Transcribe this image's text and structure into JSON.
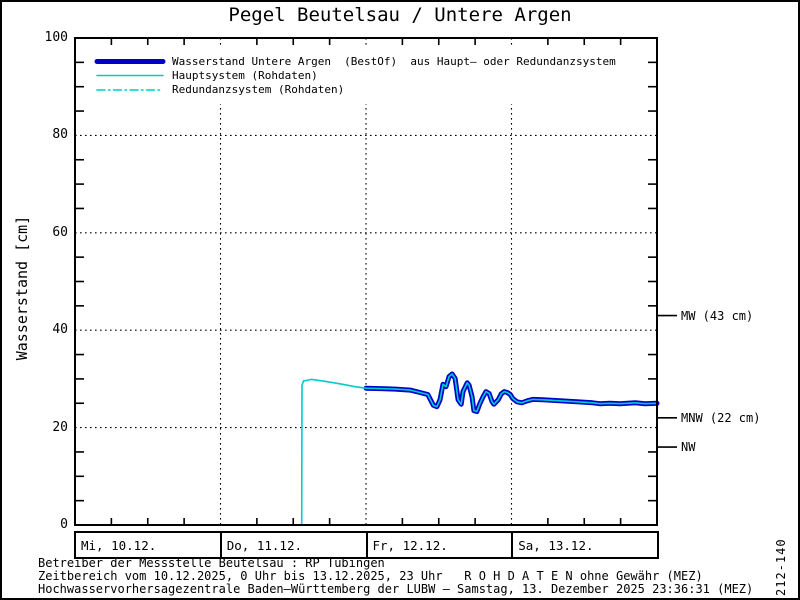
{
  "page": {
    "title": "Pegel Beutelsau / Untere Argen",
    "plot_id": "212-140",
    "footer": {
      "line1": "Betreiber der Messstelle Beutelsau : RP Tübingen",
      "line2": "Zeitbereich vom 10.12.2025, 0 Uhr bis 13.12.2025, 23 Uhr   R O H D A T E N ohne Gewähr (MEZ)",
      "line3": "Hochwasservorhersagezentrale Baden–Württemberg der LUBW – Samstag, 13. Dezember 2025 23:36:31 (MEZ)"
    }
  },
  "colors": {
    "bestof_blue": "#0000cc",
    "rohdaten_cyan": "#00cccc",
    "axis_black": "#000000",
    "background": "#ffffff"
  },
  "chart_data": {
    "type": "line",
    "title": "Pegel Beutelsau / Untere Argen",
    "ylabel": "Wasserstand [cm]",
    "ylim": [
      0,
      100
    ],
    "y_major_step": 20,
    "y_minor_step": 5,
    "y_tick_labels": [
      "0",
      "20",
      "40",
      "60",
      "80",
      "100"
    ],
    "grid": true,
    "grid_y_values": [
      20,
      40,
      60,
      80
    ],
    "x_range_hours": 96,
    "x_minor_step_hours": 6,
    "x_day_boundaries_hours": [
      24,
      48,
      72
    ],
    "day_labels": [
      "Mi, 10.12.",
      "Do, 11.12.",
      "Fr, 12.12.",
      "Sa, 13.12."
    ],
    "legend_position": "top-left",
    "right_markers": [
      {
        "label": "MW (43 cm)",
        "value": 43
      },
      {
        "label": "MNW (22 cm)",
        "value": 22
      },
      {
        "label": "NW",
        "value": 16
      }
    ],
    "series": [
      {
        "name": "Wasserstand Untere Argen  (BestOf)  aus Haupt– oder Redundanzsystem",
        "color": "#0000cc",
        "width": 5,
        "style": "solid",
        "points": [
          [
            48.0,
            28.1
          ],
          [
            50.3,
            28.0
          ],
          [
            52.8,
            27.9
          ],
          [
            55.3,
            27.7
          ],
          [
            56.9,
            27.2
          ],
          [
            58.2,
            26.8
          ],
          [
            59.1,
            24.6
          ],
          [
            59.7,
            24.3
          ],
          [
            60.2,
            25.7
          ],
          [
            60.7,
            28.9
          ],
          [
            61.2,
            28.4
          ],
          [
            61.7,
            30.5
          ],
          [
            62.2,
            31.0
          ],
          [
            62.7,
            30.1
          ],
          [
            63.2,
            25.7
          ],
          [
            63.7,
            24.8
          ],
          [
            64.0,
            27.4
          ],
          [
            64.7,
            29.2
          ],
          [
            65.0,
            28.7
          ],
          [
            65.5,
            26.3
          ],
          [
            65.8,
            23.5
          ],
          [
            66.3,
            23.3
          ],
          [
            66.8,
            25.0
          ],
          [
            67.3,
            26.3
          ],
          [
            67.8,
            27.4
          ],
          [
            68.3,
            27.0
          ],
          [
            68.8,
            25.3
          ],
          [
            69.1,
            24.8
          ],
          [
            69.8,
            25.7
          ],
          [
            70.3,
            26.9
          ],
          [
            70.8,
            27.4
          ],
          [
            71.3,
            27.2
          ],
          [
            71.8,
            26.8
          ],
          [
            72.2,
            26.0
          ],
          [
            72.9,
            25.3
          ],
          [
            73.7,
            25.1
          ],
          [
            74.6,
            25.5
          ],
          [
            75.5,
            25.8
          ],
          [
            77.2,
            25.7
          ],
          [
            80.0,
            25.5
          ],
          [
            82.8,
            25.3
          ],
          [
            85.4,
            25.1
          ],
          [
            86.6,
            24.9
          ],
          [
            88.2,
            25.0
          ],
          [
            89.9,
            24.9
          ],
          [
            92.4,
            25.1
          ],
          [
            94.0,
            24.9
          ],
          [
            96.0,
            25.0
          ]
        ]
      },
      {
        "name": "Hauptsystem (Rohdaten)",
        "color": "#00cccc",
        "width": 1.6,
        "style": "solid",
        "points": [
          [
            0,
            0
          ],
          [
            37.4,
            0
          ],
          [
            37.45,
            28.7
          ],
          [
            37.7,
            29.6
          ],
          [
            38.3,
            29.7
          ],
          [
            39.0,
            29.9
          ],
          [
            39.6,
            29.8
          ],
          [
            41.2,
            29.5
          ],
          [
            43.7,
            29.0
          ],
          [
            46.2,
            28.4
          ],
          [
            48.0,
            28.1
          ],
          [
            50.3,
            28.0
          ],
          [
            52.8,
            27.9
          ],
          [
            55.3,
            27.7
          ],
          [
            56.9,
            27.2
          ],
          [
            58.2,
            26.8
          ],
          [
            59.1,
            24.6
          ],
          [
            59.7,
            24.3
          ],
          [
            60.2,
            25.7
          ],
          [
            60.7,
            28.9
          ],
          [
            61.2,
            28.4
          ],
          [
            61.7,
            30.5
          ],
          [
            62.2,
            31.0
          ],
          [
            62.7,
            30.1
          ],
          [
            63.2,
            25.7
          ],
          [
            63.7,
            24.8
          ],
          [
            64.0,
            27.4
          ],
          [
            64.7,
            29.2
          ],
          [
            65.0,
            28.7
          ],
          [
            65.5,
            26.3
          ],
          [
            65.8,
            23.5
          ],
          [
            66.3,
            23.3
          ],
          [
            66.8,
            25.0
          ],
          [
            67.3,
            26.3
          ],
          [
            67.8,
            27.4
          ],
          [
            68.3,
            27.0
          ],
          [
            68.8,
            25.3
          ],
          [
            69.1,
            24.8
          ],
          [
            69.8,
            25.7
          ],
          [
            70.3,
            26.9
          ],
          [
            70.8,
            27.4
          ],
          [
            71.3,
            27.2
          ],
          [
            71.8,
            26.8
          ],
          [
            72.2,
            26.0
          ],
          [
            72.9,
            25.3
          ],
          [
            73.7,
            25.1
          ],
          [
            74.6,
            25.5
          ],
          [
            75.5,
            25.8
          ],
          [
            77.2,
            25.7
          ],
          [
            80.0,
            25.5
          ],
          [
            82.8,
            25.3
          ],
          [
            85.4,
            25.1
          ],
          [
            86.6,
            24.9
          ],
          [
            88.2,
            25.0
          ],
          [
            89.9,
            24.9
          ],
          [
            92.4,
            25.1
          ],
          [
            94.0,
            24.9
          ],
          [
            96.0,
            25.0
          ]
        ]
      },
      {
        "name": "Redundanzsystem (Rohdaten)",
        "color": "#00cccc",
        "width": 1.6,
        "style": "dashdot",
        "points": []
      }
    ]
  }
}
